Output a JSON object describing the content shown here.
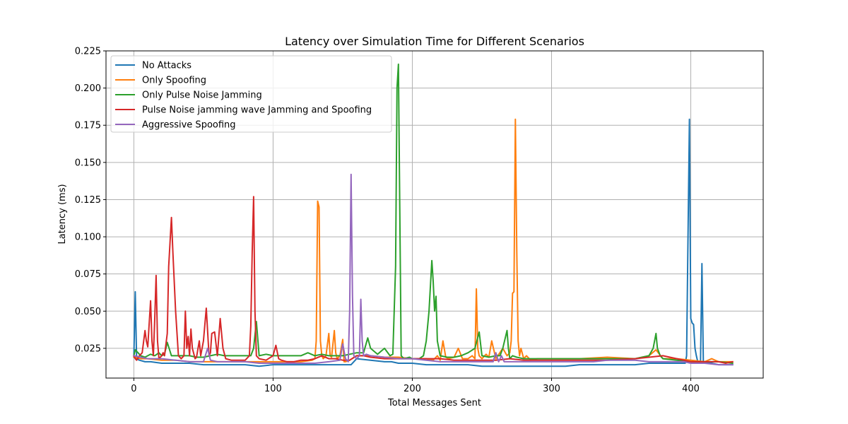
{
  "chart_data": {
    "type": "line",
    "title": "Latency over Simulation Time for Different Scenarios",
    "xlabel": "Total Messages Sent",
    "ylabel": "Latency (ms)",
    "xlim": [
      -20,
      452
    ],
    "ylim": [
      0.005,
      0.225
    ],
    "xticks": [
      0,
      100,
      200,
      300,
      400
    ],
    "yticks": [
      0.025,
      0.05,
      0.075,
      0.1,
      0.125,
      0.15,
      0.175,
      0.2,
      0.225
    ],
    "ytick_labels": [
      "0.025",
      "0.050",
      "0.075",
      "0.100",
      "0.125",
      "0.150",
      "0.175",
      "0.200",
      "0.225"
    ],
    "grid": true,
    "legend_position": "upper-left",
    "series": [
      {
        "name": "No Attacks",
        "color": "#1f77b4",
        "x": [
          0,
          1,
          2,
          4,
          8,
          12,
          20,
          30,
          40,
          50,
          60,
          70,
          80,
          90,
          100,
          110,
          120,
          130,
          140,
          150,
          156,
          160,
          170,
          180,
          185,
          190,
          200,
          210,
          220,
          230,
          240,
          250,
          260,
          270,
          280,
          290,
          300,
          310,
          320,
          330,
          340,
          350,
          360,
          370,
          380,
          390,
          396,
          397,
          398,
          399,
          400,
          401,
          402,
          403,
          404,
          405,
          406,
          407,
          408,
          409,
          410,
          415,
          420,
          425,
          430
        ],
        "y": [
          0.019,
          0.063,
          0.018,
          0.017,
          0.016,
          0.016,
          0.015,
          0.015,
          0.015,
          0.014,
          0.014,
          0.014,
          0.014,
          0.013,
          0.014,
          0.014,
          0.014,
          0.014,
          0.014,
          0.014,
          0.014,
          0.018,
          0.017,
          0.016,
          0.016,
          0.015,
          0.015,
          0.014,
          0.014,
          0.014,
          0.014,
          0.013,
          0.013,
          0.013,
          0.013,
          0.013,
          0.013,
          0.013,
          0.014,
          0.014,
          0.014,
          0.014,
          0.014,
          0.015,
          0.015,
          0.015,
          0.015,
          0.02,
          0.1,
          0.179,
          0.045,
          0.042,
          0.041,
          0.025,
          0.02,
          0.016,
          0.016,
          0.016,
          0.082,
          0.016,
          0.015,
          0.015,
          0.014,
          0.014,
          0.014
        ]
      },
      {
        "name": "Only Spoofing",
        "color": "#ff7f0e",
        "x": [
          0,
          5,
          10,
          20,
          30,
          40,
          50,
          60,
          70,
          80,
          90,
          100,
          110,
          120,
          128,
          130,
          131,
          132,
          133,
          134,
          135,
          136,
          138,
          140,
          141,
          142,
          144,
          145,
          146,
          148,
          150,
          151,
          152,
          155,
          160,
          170,
          180,
          190,
          200,
          210,
          215,
          218,
          220,
          222,
          224,
          226,
          230,
          233,
          236,
          240,
          243,
          245,
          246,
          247,
          248,
          250,
          253,
          255,
          257,
          260,
          265,
          268,
          270,
          271,
          272,
          273,
          274,
          275,
          276,
          277,
          278,
          280,
          282,
          285,
          290,
          300,
          320,
          340,
          360,
          370,
          375,
          380,
          390,
          400,
          410,
          415,
          420,
          425,
          430
        ],
        "y": [
          0.019,
          0.018,
          0.018,
          0.017,
          0.017,
          0.016,
          0.016,
          0.016,
          0.016,
          0.016,
          0.016,
          0.016,
          0.016,
          0.016,
          0.017,
          0.018,
          0.03,
          0.124,
          0.12,
          0.03,
          0.02,
          0.018,
          0.02,
          0.035,
          0.02,
          0.019,
          0.037,
          0.022,
          0.018,
          0.02,
          0.031,
          0.016,
          0.016,
          0.017,
          0.02,
          0.02,
          0.019,
          0.019,
          0.018,
          0.018,
          0.017,
          0.02,
          0.017,
          0.03,
          0.019,
          0.018,
          0.019,
          0.025,
          0.018,
          0.018,
          0.02,
          0.018,
          0.065,
          0.025,
          0.02,
          0.018,
          0.021,
          0.019,
          0.03,
          0.018,
          0.025,
          0.02,
          0.022,
          0.03,
          0.062,
          0.063,
          0.179,
          0.09,
          0.03,
          0.02,
          0.025,
          0.018,
          0.02,
          0.017,
          0.018,
          0.018,
          0.018,
          0.019,
          0.018,
          0.02,
          0.024,
          0.018,
          0.018,
          0.017,
          0.016,
          0.018,
          0.016,
          0.016,
          0.016
        ]
      },
      {
        "name": "Only Pulse Noise Jamming",
        "color": "#2ca02c",
        "x": [
          0,
          1,
          3,
          5,
          8,
          10,
          12,
          15,
          18,
          20,
          22,
          24,
          27,
          30,
          33,
          36,
          40,
          45,
          50,
          55,
          60,
          65,
          70,
          75,
          80,
          84,
          86,
          88,
          90,
          95,
          100,
          110,
          120,
          125,
          130,
          135,
          140,
          145,
          150,
          155,
          160,
          165,
          168,
          170,
          175,
          180,
          184,
          186,
          188,
          189,
          190,
          191,
          192,
          194,
          198,
          200,
          205,
          208,
          210,
          212,
          214,
          215,
          216,
          217,
          218,
          220,
          225,
          230,
          235,
          240,
          245,
          248,
          250,
          255,
          260,
          263,
          265,
          268,
          269,
          270,
          272,
          275,
          280,
          290,
          300,
          320,
          340,
          360,
          370,
          373,
          375,
          376,
          378,
          380,
          390,
          400,
          410,
          420,
          430
        ],
        "y": [
          0.02,
          0.024,
          0.022,
          0.02,
          0.019,
          0.02,
          0.021,
          0.02,
          0.022,
          0.02,
          0.021,
          0.029,
          0.02,
          0.02,
          0.02,
          0.02,
          0.02,
          0.019,
          0.019,
          0.02,
          0.021,
          0.02,
          0.02,
          0.02,
          0.02,
          0.02,
          0.025,
          0.043,
          0.02,
          0.021,
          0.02,
          0.02,
          0.02,
          0.022,
          0.02,
          0.021,
          0.02,
          0.02,
          0.02,
          0.021,
          0.022,
          0.022,
          0.032,
          0.025,
          0.021,
          0.025,
          0.02,
          0.021,
          0.08,
          0.2,
          0.216,
          0.12,
          0.02,
          0.018,
          0.019,
          0.018,
          0.018,
          0.02,
          0.03,
          0.05,
          0.084,
          0.07,
          0.05,
          0.06,
          0.03,
          0.02,
          0.019,
          0.019,
          0.02,
          0.022,
          0.025,
          0.036,
          0.02,
          0.019,
          0.02,
          0.02,
          0.025,
          0.037,
          0.025,
          0.018,
          0.02,
          0.019,
          0.018,
          0.018,
          0.018,
          0.018,
          0.018,
          0.018,
          0.02,
          0.025,
          0.035,
          0.025,
          0.02,
          0.018,
          0.017,
          0.016,
          0.016,
          0.016,
          0.015
        ]
      },
      {
        "name": "Pulse Noise jamming wave Jamming and Spoofing",
        "color": "#d62728",
        "x": [
          0,
          1,
          2,
          4,
          6,
          8,
          9,
          10,
          12,
          13,
          14,
          15,
          16,
          17,
          18,
          20,
          21,
          22,
          24,
          25,
          27,
          28,
          30,
          32,
          34,
          36,
          37,
          38,
          39,
          40,
          41,
          42,
          44,
          45,
          47,
          48,
          50,
          52,
          54,
          55,
          56,
          58,
          60,
          62,
          64,
          66,
          70,
          75,
          80,
          83,
          84,
          85,
          86,
          87,
          88,
          90,
          95,
          100,
          102,
          104,
          106,
          110,
          115,
          120,
          125,
          130,
          135,
          140,
          145,
          150,
          155,
          160,
          165,
          170,
          180,
          190,
          200,
          210,
          220,
          230,
          240,
          250,
          260,
          270,
          280,
          290,
          300,
          320,
          340,
          360,
          380,
          390,
          400,
          410,
          420,
          425,
          430
        ],
        "y": [
          0.02,
          0.018,
          0.017,
          0.02,
          0.022,
          0.037,
          0.03,
          0.026,
          0.057,
          0.03,
          0.02,
          0.045,
          0.074,
          0.03,
          0.018,
          0.02,
          0.022,
          0.02,
          0.035,
          0.08,
          0.113,
          0.09,
          0.05,
          0.02,
          0.018,
          0.02,
          0.05,
          0.025,
          0.033,
          0.02,
          0.038,
          0.025,
          0.018,
          0.019,
          0.03,
          0.02,
          0.03,
          0.052,
          0.02,
          0.022,
          0.035,
          0.036,
          0.02,
          0.045,
          0.025,
          0.018,
          0.017,
          0.017,
          0.017,
          0.02,
          0.04,
          0.09,
          0.127,
          0.05,
          0.02,
          0.018,
          0.017,
          0.02,
          0.027,
          0.018,
          0.017,
          0.016,
          0.016,
          0.017,
          0.017,
          0.018,
          0.02,
          0.018,
          0.018,
          0.017,
          0.017,
          0.02,
          0.02,
          0.019,
          0.018,
          0.018,
          0.018,
          0.018,
          0.018,
          0.017,
          0.017,
          0.017,
          0.017,
          0.018,
          0.017,
          0.017,
          0.017,
          0.017,
          0.017,
          0.018,
          0.02,
          0.018,
          0.016,
          0.016,
          0.016,
          0.015,
          0.016
        ]
      },
      {
        "name": "Aggressive Spoofing",
        "color": "#9467bd",
        "x": [
          0,
          5,
          10,
          20,
          30,
          40,
          50,
          53,
          55,
          60,
          70,
          80,
          90,
          100,
          110,
          120,
          130,
          140,
          148,
          150,
          152,
          154,
          155,
          156,
          157,
          158,
          160,
          162,
          163,
          164,
          165,
          167,
          170,
          180,
          190,
          200,
          210,
          220,
          230,
          240,
          250,
          258,
          260,
          262,
          264,
          266,
          270,
          280,
          290,
          300,
          310,
          320,
          330,
          340,
          350,
          360,
          370,
          380,
          390,
          395,
          400,
          410,
          420,
          430
        ],
        "y": [
          0.02,
          0.019,
          0.018,
          0.018,
          0.017,
          0.016,
          0.016,
          0.025,
          0.017,
          0.016,
          0.016,
          0.016,
          0.015,
          0.015,
          0.015,
          0.015,
          0.015,
          0.016,
          0.017,
          0.028,
          0.018,
          0.016,
          0.05,
          0.142,
          0.06,
          0.02,
          0.018,
          0.02,
          0.058,
          0.03,
          0.02,
          0.021,
          0.02,
          0.019,
          0.018,
          0.018,
          0.017,
          0.016,
          0.016,
          0.016,
          0.016,
          0.016,
          0.022,
          0.016,
          0.02,
          0.016,
          0.016,
          0.016,
          0.016,
          0.016,
          0.016,
          0.016,
          0.016,
          0.017,
          0.017,
          0.017,
          0.016,
          0.016,
          0.016,
          0.016,
          0.015,
          0.015,
          0.014,
          0.014
        ]
      }
    ]
  }
}
